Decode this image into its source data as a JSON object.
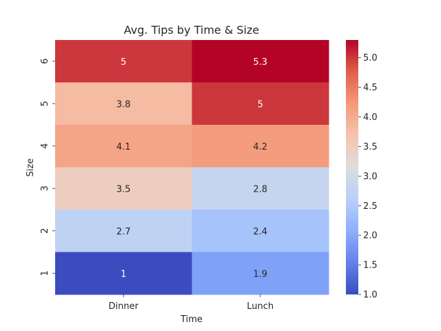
{
  "chart_data": {
    "type": "heatmap",
    "title": "Avg. Tips by Time & Size",
    "xlabel": "Time",
    "ylabel": "Size",
    "x_categories": [
      "Dinner",
      "Lunch"
    ],
    "y_categories": [
      "6",
      "5",
      "4",
      "3",
      "2",
      "1"
    ],
    "values": [
      [
        5.0,
        5.3
      ],
      [
        3.8,
        5.0
      ],
      [
        4.1,
        4.2
      ],
      [
        3.5,
        2.8
      ],
      [
        2.7,
        2.4
      ],
      [
        1.0,
        1.9
      ]
    ],
    "cell_labels": [
      [
        "5",
        "5.3"
      ],
      [
        "3.8",
        "5"
      ],
      [
        "4.1",
        "4.2"
      ],
      [
        "3.5",
        "2.8"
      ],
      [
        "2.7",
        "2.4"
      ],
      [
        "1",
        "1.9"
      ]
    ],
    "colormap": "coolwarm",
    "color_range": [
      1.0,
      5.3
    ],
    "colorbar_ticks": [
      "1.0",
      "1.5",
      "2.0",
      "2.5",
      "3.0",
      "3.5",
      "4.0",
      "4.5",
      "5.0"
    ],
    "grid": false
  }
}
